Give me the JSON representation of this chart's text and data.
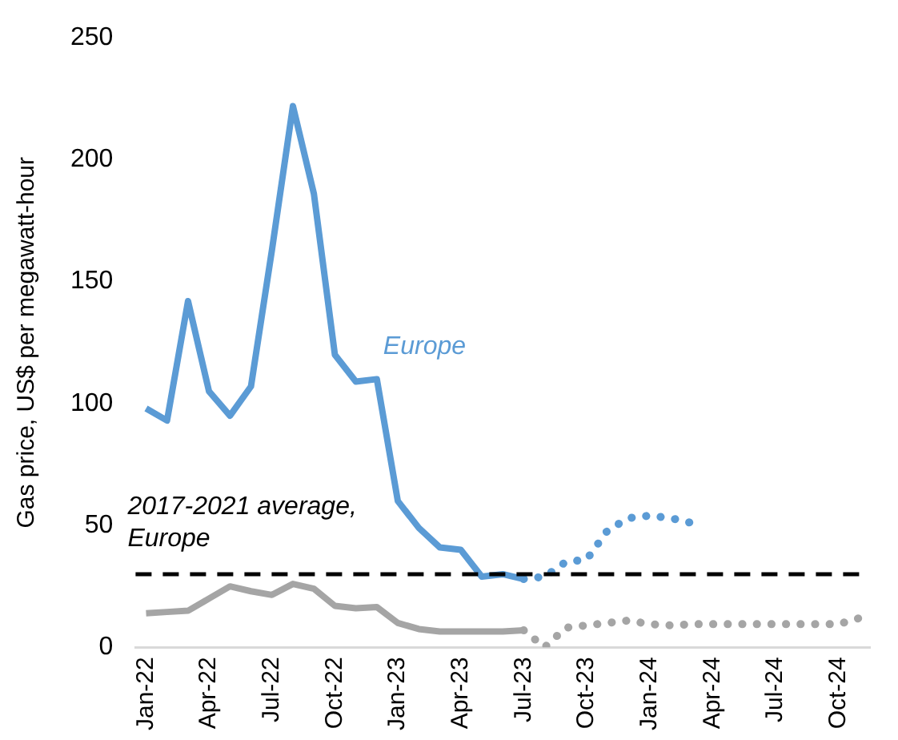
{
  "chart_data": {
    "type": "line",
    "ylabel": "Gas price, US$ per megawatt-hour",
    "categories": [
      "Jan-22",
      null,
      null,
      "Apr-22",
      null,
      null,
      "Jul-22",
      null,
      null,
      "Oct-22",
      null,
      null,
      "Jan-23",
      null,
      null,
      "Apr-23",
      null,
      null,
      "Jul-23",
      null,
      null,
      "Oct-23",
      null,
      null,
      "Jan-24",
      null,
      null,
      "Apr-24",
      null,
      null,
      "Jul-24",
      null,
      null,
      "Oct-24",
      null
    ],
    "series": [
      {
        "name": "Europe",
        "color": "#5b9bd5",
        "line_style": "solid",
        "values": [
          98,
          93,
          142,
          105,
          95,
          107,
          163,
          222,
          186,
          120,
          109,
          110,
          60,
          49,
          41,
          40,
          29,
          30,
          28,
          null,
          null,
          null,
          null,
          null,
          null,
          null,
          null,
          null,
          null,
          null,
          null,
          null,
          null,
          null,
          null
        ]
      },
      {
        "color": "#5b9bd5",
        "line_style": "dotted",
        "values": [
          null,
          null,
          null,
          null,
          null,
          null,
          null,
          null,
          null,
          null,
          null,
          null,
          null,
          null,
          null,
          null,
          null,
          null,
          28,
          29,
          35,
          36,
          48,
          53,
          54,
          53,
          51,
          null,
          null,
          null,
          null,
          null,
          null,
          null,
          null
        ]
      },
      {
        "color": "#a5a5a5",
        "line_style": "solid",
        "values": [
          14,
          14.5,
          15,
          20,
          25,
          23,
          21.5,
          26,
          24,
          17,
          16,
          16.5,
          10,
          7.5,
          6.5,
          6.5,
          6.5,
          6.5,
          7,
          null,
          null,
          null,
          null,
          null,
          null,
          null,
          null,
          null,
          null,
          null,
          null,
          null,
          null,
          null,
          null
        ]
      },
      {
        "color": "#a5a5a5",
        "line_style": "dotted",
        "values": [
          null,
          null,
          null,
          null,
          null,
          null,
          null,
          null,
          null,
          null,
          null,
          null,
          null,
          null,
          null,
          null,
          null,
          null,
          7,
          0,
          8,
          9,
          10,
          11,
          9.5,
          9,
          9.5,
          9.5,
          9.5,
          9.5,
          9.5,
          9.5,
          9.5,
          9.5,
          12
        ]
      }
    ],
    "ylim": [
      0,
      250
    ],
    "yticks": [
      0,
      50,
      100,
      150,
      200,
      250
    ],
    "grid": false,
    "legend": false,
    "marker": "none",
    "ref_lines": [
      {
        "axis": "y",
        "value": 30,
        "label": "2017-2021 average, Europe",
        "color": "#000000",
        "line_style": "dashed"
      }
    ]
  }
}
